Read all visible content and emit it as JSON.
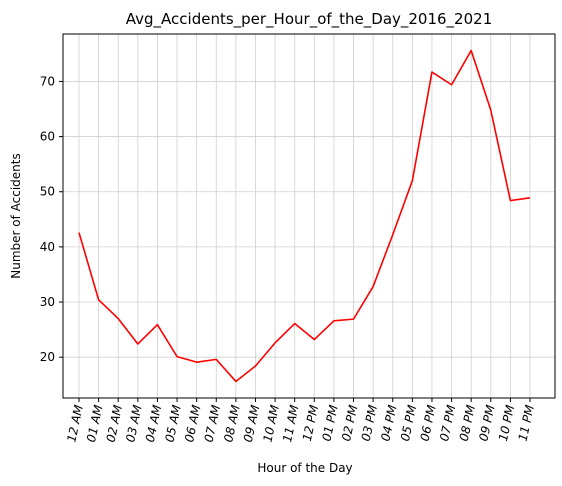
{
  "chart_data": {
    "type": "line",
    "title": "Avg_Accidents_per_Hour_of_the_Day_2016_2021",
    "xlabel": "Hour of the Day",
    "ylabel": "Number of Accidents",
    "categories": [
      "12 AM",
      "01 AM",
      "02 AM",
      "03 AM",
      "04 AM",
      "05 AM",
      "06 AM",
      "07 AM",
      "08 AM",
      "09 AM",
      "10 AM",
      "11 AM",
      "12 PM",
      "01 PM",
      "02 PM",
      "03 PM",
      "04 PM",
      "05 PM",
      "06 PM",
      "07 PM",
      "08 PM",
      "09 PM",
      "10 PM",
      "11 PM"
    ],
    "series": [
      {
        "values": [
          42.6,
          30.4,
          27.0,
          22.4,
          25.9,
          20.1,
          19.1,
          19.6,
          15.6,
          18.4,
          22.6,
          26.1,
          23.2,
          26.6,
          26.9,
          32.8,
          42.2,
          52.0,
          71.7,
          69.4,
          75.6,
          64.8,
          48.4,
          48.9
        ],
        "color": "#ff0000"
      }
    ],
    "ylim": [
      12.6,
      78.6
    ],
    "yticks": [
      20,
      30,
      40,
      50,
      60,
      70
    ],
    "grid": true
  }
}
